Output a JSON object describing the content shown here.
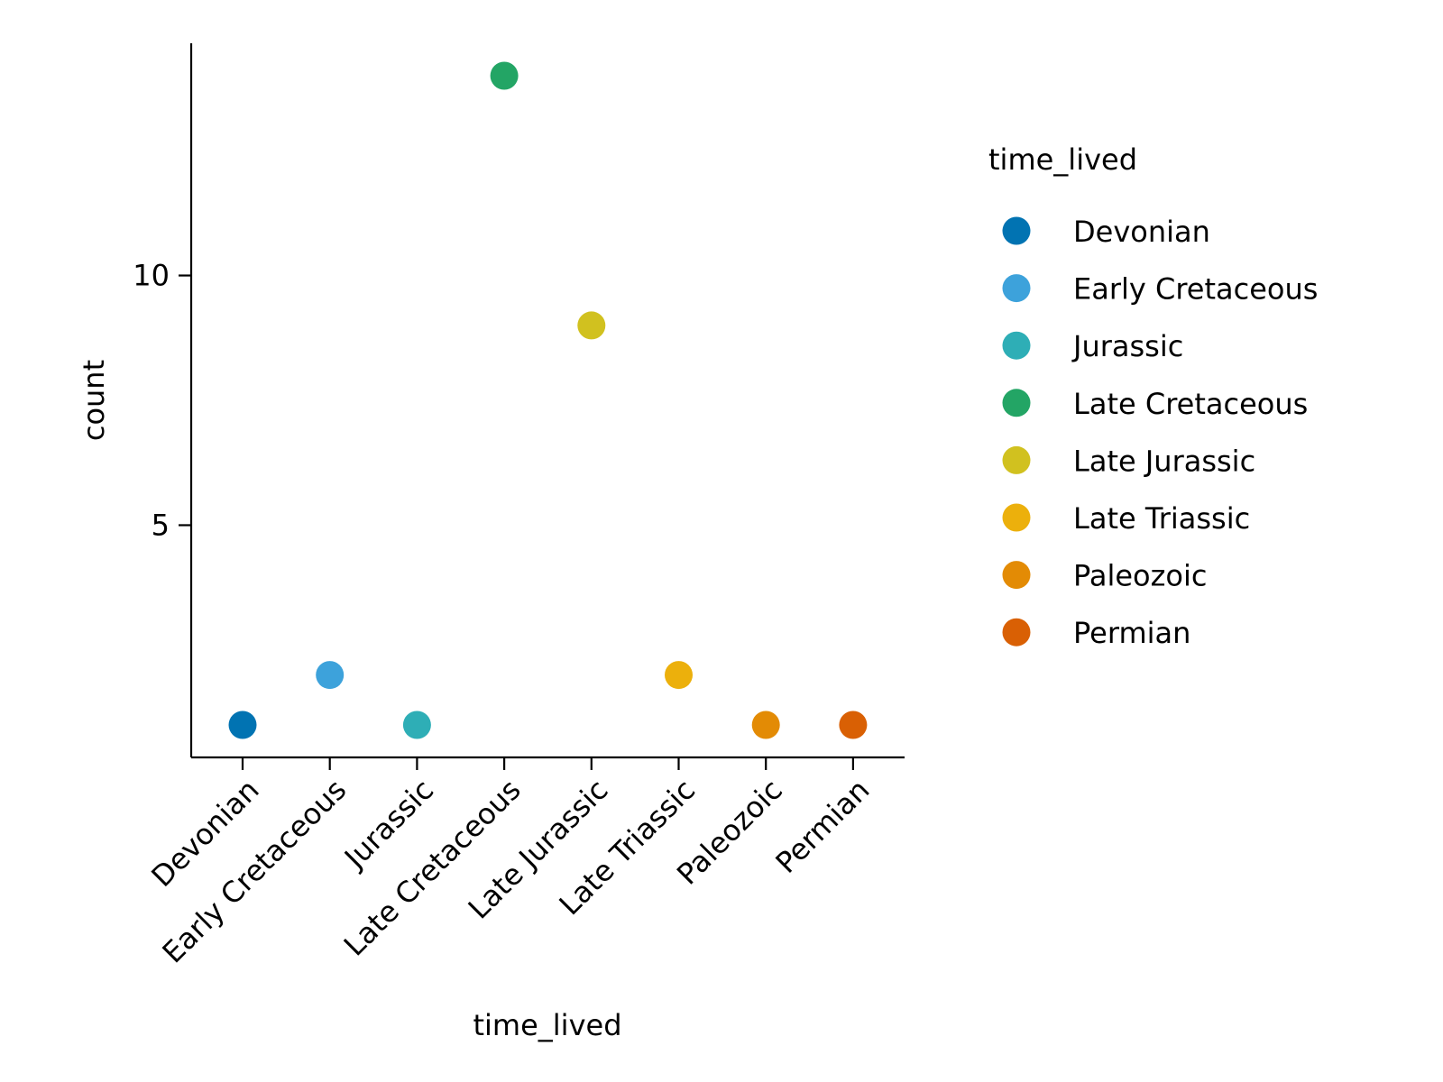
{
  "chart_data": {
    "type": "scatter",
    "categories": [
      "Devonian",
      "Early Cretaceous",
      "Jurassic",
      "Late Cretaceous",
      "Late Jurassic",
      "Late Triassic",
      "Paleozoic",
      "Permian"
    ],
    "values": [
      1,
      2,
      1,
      14,
      9,
      2,
      1,
      1
    ],
    "colors": [
      "#0173b2",
      "#3da2db",
      "#2eaeb6",
      "#23a565",
      "#d1c11f",
      "#ecb00c",
      "#e38b05",
      "#d96004"
    ],
    "title": "",
    "xlabel": "time_lived",
    "ylabel": "count",
    "ylim": [
      0.35,
      14.65
    ],
    "yticks": [
      5,
      10
    ],
    "grid": false,
    "legend": {
      "title": "time_lived",
      "placement": "right",
      "entries": [
        "Devonian",
        "Early Cretaceous",
        "Jurassic",
        "Late Cretaceous",
        "Late Jurassic",
        "Late Triassic",
        "Paleozoic",
        "Permian"
      ]
    }
  }
}
